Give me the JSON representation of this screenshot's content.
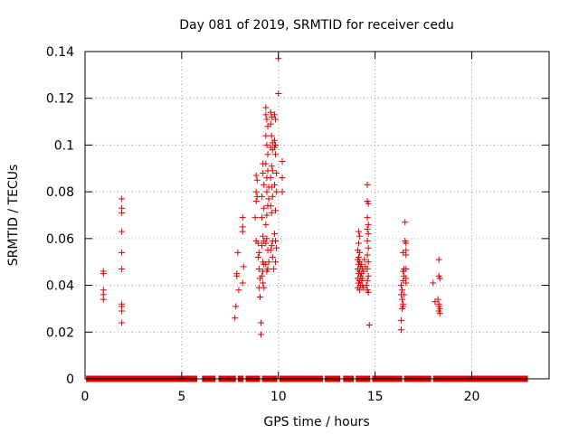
{
  "chart_data": {
    "type": "scatter",
    "title": "Day 081 of 2019, SRMTID for receiver cedu",
    "xlabel": "GPS time / hours",
    "ylabel": "SRMTID / TECUs",
    "xlim": [
      0,
      24
    ],
    "ylim": [
      0,
      0.14
    ],
    "xticks": [
      0,
      5,
      10,
      15,
      20
    ],
    "xtick_labels": [
      "0",
      "5",
      "10",
      "15",
      "20"
    ],
    "yticks": [
      0,
      0.02,
      0.04,
      0.06,
      0.08,
      0.1,
      0.12,
      0.14
    ],
    "ytick_labels": [
      "0",
      "0.02",
      "0.04",
      "0.06",
      "0.08",
      "0.1",
      "0.12",
      "0.14"
    ],
    "grid": true,
    "marker": "plus",
    "marker_color": "#dd0000",
    "zero_baseline_ranges": [
      [
        0.05,
        5.8
      ],
      [
        6.05,
        6.75
      ],
      [
        6.9,
        7.8
      ],
      [
        7.9,
        8.2
      ],
      [
        8.3,
        9.05
      ],
      [
        9.15,
        9.95
      ],
      [
        10.05,
        12.3
      ],
      [
        12.4,
        13.2
      ],
      [
        13.35,
        13.9
      ],
      [
        14.0,
        14.75
      ],
      [
        14.85,
        16.4
      ],
      [
        16.5,
        17.9
      ],
      [
        18.0,
        22.9
      ]
    ],
    "series": [
      {
        "name": "SRMTID",
        "points": [
          [
            0.95,
            0.046
          ],
          [
            0.95,
            0.045
          ],
          [
            0.95,
            0.038
          ],
          [
            0.95,
            0.036
          ],
          [
            0.95,
            0.034
          ],
          [
            1.9,
            0.077
          ],
          [
            1.9,
            0.073
          ],
          [
            1.9,
            0.071
          ],
          [
            1.9,
            0.063
          ],
          [
            1.9,
            0.054
          ],
          [
            1.9,
            0.047
          ],
          [
            1.9,
            0.032
          ],
          [
            1.9,
            0.031
          ],
          [
            1.9,
            0.029
          ],
          [
            1.9,
            0.024
          ],
          [
            7.75,
            0.026
          ],
          [
            7.8,
            0.031
          ],
          [
            7.85,
            0.044
          ],
          [
            7.9,
            0.054
          ],
          [
            7.85,
            0.045
          ],
          [
            7.95,
            0.038
          ],
          [
            8.15,
            0.069
          ],
          [
            8.15,
            0.065
          ],
          [
            8.15,
            0.063
          ],
          [
            8.2,
            0.048
          ],
          [
            8.15,
            0.041
          ],
          [
            8.85,
            0.087
          ],
          [
            8.9,
            0.085
          ],
          [
            8.85,
            0.08
          ],
          [
            8.9,
            0.078
          ],
          [
            8.85,
            0.076
          ],
          [
            8.8,
            0.069
          ],
          [
            8.85,
            0.059
          ],
          [
            8.95,
            0.058
          ],
          [
            9.0,
            0.054
          ],
          [
            8.95,
            0.052
          ],
          [
            9.0,
            0.047
          ],
          [
            9.05,
            0.043
          ],
          [
            9.0,
            0.039
          ],
          [
            9.05,
            0.035
          ],
          [
            9.1,
            0.024
          ],
          [
            9.1,
            0.019
          ],
          [
            9.2,
            0.092
          ],
          [
            9.2,
            0.088
          ],
          [
            9.25,
            0.083
          ],
          [
            9.15,
            0.078
          ],
          [
            9.25,
            0.073
          ],
          [
            9.15,
            0.069
          ],
          [
            9.2,
            0.061
          ],
          [
            9.25,
            0.059
          ],
          [
            9.15,
            0.057
          ],
          [
            9.2,
            0.05
          ],
          [
            9.25,
            0.049
          ],
          [
            9.2,
            0.046
          ],
          [
            9.15,
            0.044
          ],
          [
            9.2,
            0.041
          ],
          [
            9.25,
            0.039
          ],
          [
            9.35,
            0.116
          ],
          [
            9.35,
            0.113
          ],
          [
            9.4,
            0.111
          ],
          [
            9.45,
            0.108
          ],
          [
            9.35,
            0.104
          ],
          [
            9.4,
            0.1
          ],
          [
            9.45,
            0.096
          ],
          [
            9.35,
            0.092
          ],
          [
            9.45,
            0.089
          ],
          [
            9.4,
            0.086
          ],
          [
            9.5,
            0.082
          ],
          [
            9.4,
            0.08
          ],
          [
            9.5,
            0.077
          ],
          [
            9.45,
            0.074
          ],
          [
            9.4,
            0.07
          ],
          [
            9.35,
            0.066
          ],
          [
            9.4,
            0.06
          ],
          [
            9.35,
            0.058
          ],
          [
            9.45,
            0.055
          ],
          [
            9.5,
            0.05
          ],
          [
            9.35,
            0.049
          ],
          [
            9.45,
            0.047
          ],
          [
            9.4,
            0.046
          ],
          [
            9.6,
            0.114
          ],
          [
            9.65,
            0.112
          ],
          [
            9.6,
            0.109
          ],
          [
            9.65,
            0.104
          ],
          [
            9.7,
            0.101
          ],
          [
            9.6,
            0.099
          ],
          [
            9.7,
            0.098
          ],
          [
            9.65,
            0.091
          ],
          [
            9.7,
            0.089
          ],
          [
            9.6,
            0.086
          ],
          [
            9.65,
            0.082
          ],
          [
            9.7,
            0.078
          ],
          [
            9.6,
            0.074
          ],
          [
            9.65,
            0.071
          ],
          [
            9.7,
            0.059
          ],
          [
            9.65,
            0.057
          ],
          [
            9.6,
            0.055
          ],
          [
            9.7,
            0.052
          ],
          [
            9.75,
            0.047
          ],
          [
            9.8,
            0.113
          ],
          [
            9.85,
            0.111
          ],
          [
            9.8,
            0.102
          ],
          [
            9.85,
            0.1
          ],
          [
            9.8,
            0.099
          ],
          [
            9.85,
            0.096
          ],
          [
            9.9,
            0.088
          ],
          [
            9.8,
            0.083
          ],
          [
            9.9,
            0.08
          ],
          [
            9.85,
            0.072
          ],
          [
            9.8,
            0.062
          ],
          [
            9.85,
            0.059
          ],
          [
            9.9,
            0.056
          ],
          [
            9.85,
            0.05
          ],
          [
            10.0,
            0.137
          ],
          [
            10.0,
            0.122
          ],
          [
            10.2,
            0.093
          ],
          [
            10.2,
            0.086
          ],
          [
            10.2,
            0.08
          ],
          [
            14.15,
            0.063
          ],
          [
            14.2,
            0.061
          ],
          [
            14.15,
            0.058
          ],
          [
            14.1,
            0.055
          ],
          [
            14.2,
            0.054
          ],
          [
            14.15,
            0.052
          ],
          [
            14.1,
            0.051
          ],
          [
            14.2,
            0.05
          ],
          [
            14.15,
            0.049
          ],
          [
            14.25,
            0.048
          ],
          [
            14.1,
            0.047
          ],
          [
            14.2,
            0.046
          ],
          [
            14.15,
            0.045
          ],
          [
            14.25,
            0.044
          ],
          [
            14.1,
            0.043
          ],
          [
            14.2,
            0.042
          ],
          [
            14.15,
            0.041
          ],
          [
            14.25,
            0.04
          ],
          [
            14.1,
            0.039
          ],
          [
            14.2,
            0.038
          ],
          [
            14.3,
            0.049
          ],
          [
            14.35,
            0.047
          ],
          [
            14.3,
            0.045
          ],
          [
            14.35,
            0.043
          ],
          [
            14.3,
            0.042
          ],
          [
            14.35,
            0.04
          ],
          [
            14.4,
            0.039
          ],
          [
            14.45,
            0.051
          ],
          [
            14.5,
            0.048
          ],
          [
            14.4,
            0.046
          ],
          [
            14.6,
            0.083
          ],
          [
            14.6,
            0.076
          ],
          [
            14.65,
            0.075
          ],
          [
            14.6,
            0.069
          ],
          [
            14.65,
            0.066
          ],
          [
            14.6,
            0.064
          ],
          [
            14.65,
            0.062
          ],
          [
            14.6,
            0.059
          ],
          [
            14.65,
            0.056
          ],
          [
            14.6,
            0.053
          ],
          [
            14.65,
            0.05
          ],
          [
            14.6,
            0.047
          ],
          [
            14.65,
            0.044
          ],
          [
            14.6,
            0.042
          ],
          [
            14.55,
            0.04
          ],
          [
            14.6,
            0.038
          ],
          [
            14.65,
            0.037
          ],
          [
            14.7,
            0.023
          ],
          [
            16.35,
            0.04
          ],
          [
            16.4,
            0.038
          ],
          [
            16.35,
            0.036
          ],
          [
            16.4,
            0.034
          ],
          [
            16.45,
            0.032
          ],
          [
            16.4,
            0.03
          ],
          [
            16.35,
            0.025
          ],
          [
            16.35,
            0.021
          ],
          [
            16.45,
            0.054
          ],
          [
            16.5,
            0.047
          ],
          [
            16.45,
            0.046
          ],
          [
            16.5,
            0.044
          ],
          [
            16.45,
            0.042
          ],
          [
            16.5,
            0.036
          ],
          [
            16.45,
            0.031
          ],
          [
            16.55,
            0.067
          ],
          [
            16.55,
            0.059
          ],
          [
            16.6,
            0.058
          ],
          [
            16.6,
            0.055
          ],
          [
            16.6,
            0.053
          ],
          [
            16.6,
            0.047
          ],
          [
            16.6,
            0.043
          ],
          [
            16.6,
            0.041
          ],
          [
            18.0,
            0.041
          ],
          [
            18.1,
            0.033
          ],
          [
            18.3,
            0.051
          ],
          [
            18.3,
            0.044
          ],
          [
            18.35,
            0.043
          ],
          [
            18.25,
            0.034
          ],
          [
            18.3,
            0.032
          ],
          [
            18.3,
            0.031
          ],
          [
            18.35,
            0.03
          ],
          [
            18.3,
            0.029
          ],
          [
            18.35,
            0.028
          ]
        ]
      }
    ]
  }
}
